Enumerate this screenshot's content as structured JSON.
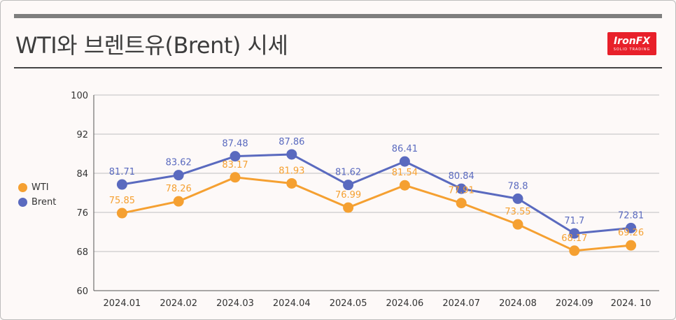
{
  "title": "WTI와 브렌트유(Brent) 시세",
  "logo": {
    "main": "IronFX",
    "sub": "SOLID TRADING"
  },
  "colors": {
    "wti": "#f5a031",
    "brent": "#5a6abf",
    "grid": "#bfbfbf"
  },
  "chart_data": {
    "type": "line",
    "categories": [
      "2024.01",
      "2024.02",
      "2024.03",
      "2024.04",
      "2024.05",
      "2024.06",
      "2024.07",
      "2024.08",
      "2024.09",
      "2024. 10"
    ],
    "series": [
      {
        "name": "WTI",
        "values": [
          75.85,
          78.26,
          83.17,
          81.93,
          76.99,
          81.54,
          77.91,
          73.55,
          68.17,
          69.26
        ],
        "labels": [
          "75.85",
          "78.26",
          "83.17",
          "81.93",
          "76.99",
          "81.54",
          "77.91",
          "73.55",
          "68.17",
          "69.26"
        ]
      },
      {
        "name": "Brent",
        "values": [
          81.71,
          83.62,
          87.48,
          87.86,
          81.62,
          86.41,
          80.84,
          78.8,
          71.7,
          72.81
        ],
        "labels": [
          "81.71",
          "83.62",
          "87.48",
          "87.86",
          "81.62",
          "86.41",
          "80.84",
          "78.8",
          "71.7",
          "72.81"
        ]
      }
    ],
    "ylim": [
      60,
      100
    ],
    "yticks": [
      "60",
      "68",
      "76",
      "84",
      "92",
      "100"
    ],
    "grid": true,
    "legend_position": "left"
  }
}
